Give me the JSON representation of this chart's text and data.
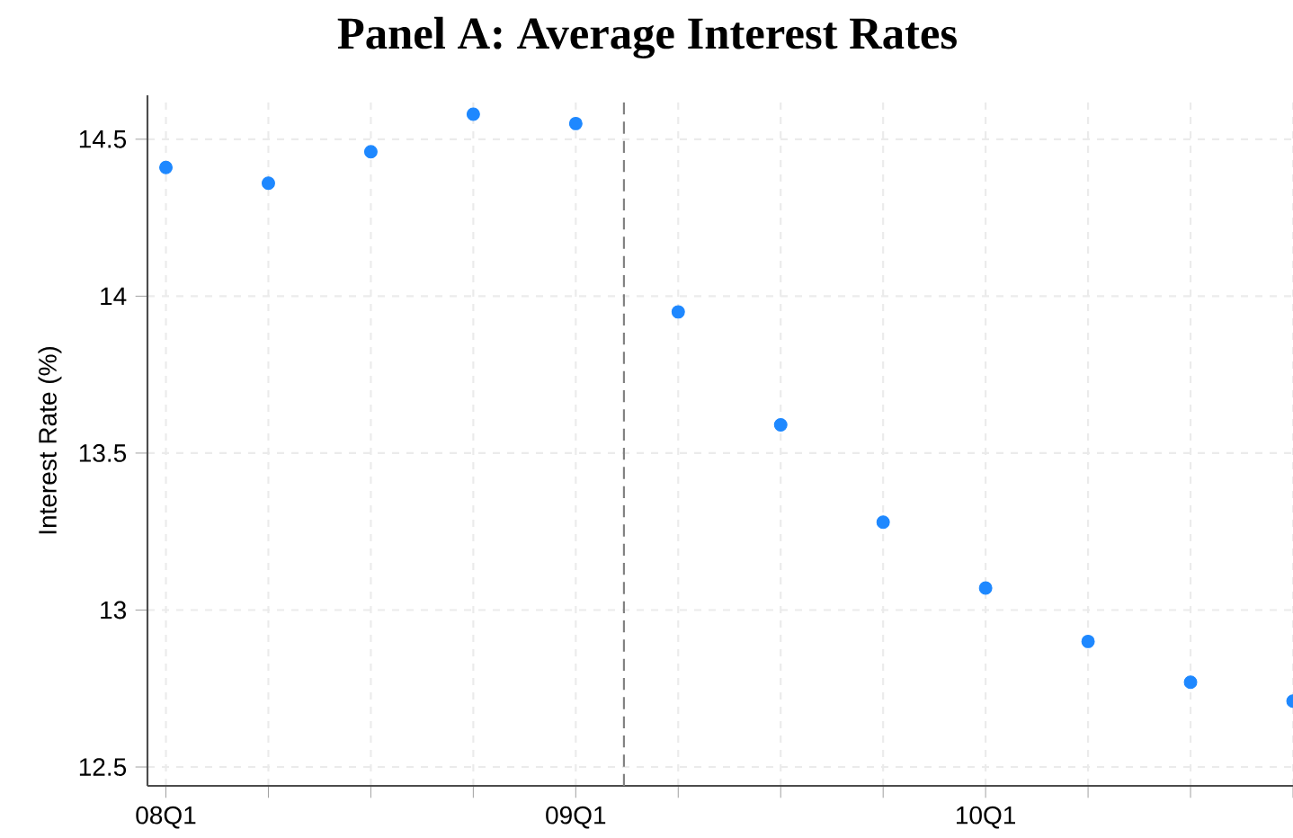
{
  "chart_data": {
    "type": "scatter",
    "title": "Panel A: Average Interest Rates",
    "ylabel": "Interest Rate (%)",
    "categories": [
      "08Q1",
      null,
      null,
      null,
      "09Q1",
      null,
      null,
      null,
      "10Q1",
      null,
      null,
      null
    ],
    "values": [
      14.41,
      14.36,
      14.46,
      14.58,
      14.55,
      13.95,
      13.59,
      13.28,
      13.07,
      12.9,
      12.77,
      12.71
    ],
    "color": "#1e88ff",
    "ylim": [
      12.44,
      14.64
    ],
    "yticks": [
      12.5,
      13,
      13.5,
      14,
      14.5
    ],
    "grid": true
  }
}
